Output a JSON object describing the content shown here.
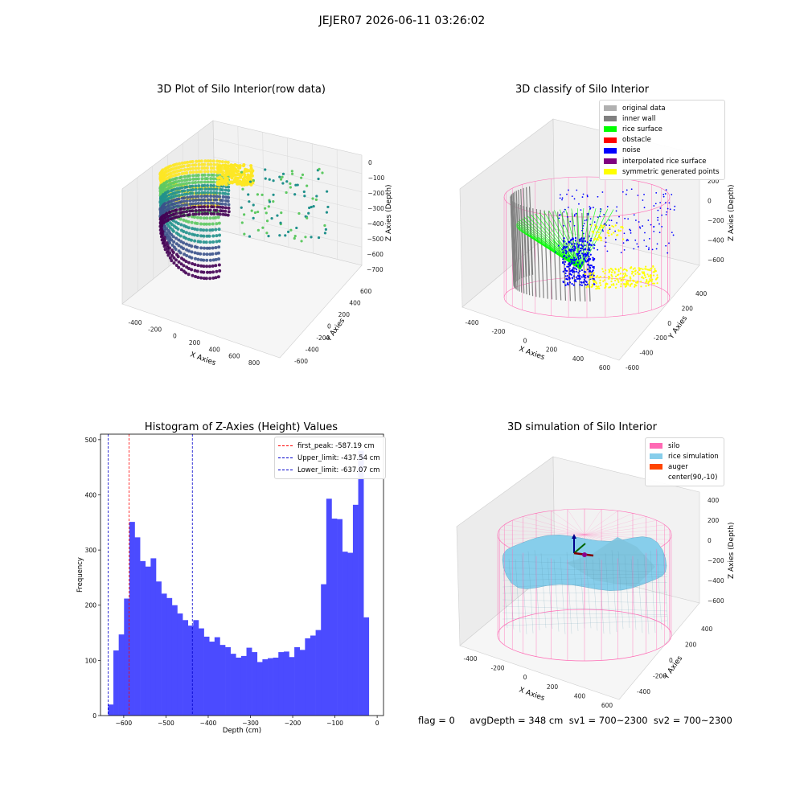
{
  "suptitle": "JEJER07 2026-06-11 03:26:02",
  "colors": {
    "raw_cmap": [
      "#440154",
      "#3b528b",
      "#21918c",
      "#5ec962",
      "#fde725"
    ],
    "original_data": "#b0b0b0",
    "inner_wall": "#808080",
    "rice_surface": "#00ff00",
    "obstacle": "#ff0000",
    "noise": "#0000ff",
    "interpolated": "#800080",
    "symmetric": "#ffff00",
    "silo": "#ff69b4",
    "rice_sim": "#87ceeb",
    "auger": "#ff4500",
    "hist_bar": "#4b4bff",
    "peak_line": "#ff0000",
    "limit_line": "#0000cc"
  },
  "plot1": {
    "title": "3D Plot of Silo Interior(row data)",
    "xlabel": "X Axies",
    "ylabel": "Y Axies",
    "zlabel": "Z Axies (Depth)",
    "xticks": [
      "-400",
      "-200",
      "0",
      "200",
      "400",
      "600",
      "800"
    ],
    "yticks": [
      "-600",
      "-400",
      "-200",
      "0",
      "200",
      "400",
      "600"
    ],
    "zticks": [
      "0",
      "−100",
      "−200",
      "−300",
      "−400",
      "−500",
      "−600",
      "−700"
    ]
  },
  "plot2": {
    "title": "3D classify of Silo Interior",
    "xlabel": "X Axies",
    "ylabel": "Y Axies",
    "zlabel": "Z Axies (Depth)",
    "xticks": [
      "-400",
      "-200",
      "0",
      "200",
      "400",
      "600"
    ],
    "yticks": [
      "-600",
      "-400",
      "-200",
      "0",
      "200",
      "400"
    ],
    "zticks": [
      "200",
      "0",
      "−200",
      "−400",
      "−600"
    ],
    "legend": [
      {
        "label": "original data",
        "color": "#b0b0b0"
      },
      {
        "label": "inner wall",
        "color": "#808080"
      },
      {
        "label": "rice surface",
        "color": "#00ff00"
      },
      {
        "label": "obstacle",
        "color": "#ff0000"
      },
      {
        "label": "noise",
        "color": "#0000ff"
      },
      {
        "label": "interpolated rice surface",
        "color": "#800080"
      },
      {
        "label": "symmetric generated points",
        "color": "#ffff00"
      }
    ]
  },
  "plot4": {
    "title": "3D simulation of Silo Interior",
    "xlabel": "X Axies",
    "ylabel": "Y Axies",
    "zlabel": "Z Axies (Depth)",
    "xticks": [
      "-400",
      "-200",
      "0",
      "200",
      "400",
      "600"
    ],
    "yticks": [
      "-400",
      "-200",
      "0",
      "200",
      "400"
    ],
    "zticks": [
      "400",
      "200",
      "0",
      "−200",
      "−400",
      "−600"
    ],
    "legend": [
      {
        "label": "silo",
        "color": "#ff69b4"
      },
      {
        "label": "rice simulation",
        "color": "#87ceeb"
      },
      {
        "label": "auger",
        "color": "#ff4500"
      },
      {
        "label": "center(90,-10)",
        "color": ""
      }
    ]
  },
  "footer": "flag = 0     avgDepth = 348 cm  sv1 = 700~2300  sv2 = 700~2300",
  "chart_data": {
    "type": "bar",
    "title": "Histogram of Z-Axies (Height) Values",
    "xlabel": "Depth (cm)",
    "ylabel": "Frequency",
    "xlim": [
      -655,
      15
    ],
    "ylim": [
      0,
      510
    ],
    "xticks": [
      -600,
      -500,
      -400,
      -300,
      -200,
      -100,
      0
    ],
    "yticks": [
      0,
      100,
      200,
      300,
      400,
      500
    ],
    "xtick_labels": [
      "−600",
      "−500",
      "−400",
      "−300",
      "−200",
      "−100",
      "0"
    ],
    "bin_start": -637.07,
    "bin_width": 12.6,
    "values": [
      20,
      118,
      147,
      212,
      351,
      323,
      280,
      270,
      285,
      243,
      221,
      213,
      200,
      185,
      173,
      163,
      173,
      158,
      143,
      134,
      142,
      128,
      124,
      112,
      105,
      108,
      123,
      115,
      97,
      102,
      104,
      105,
      115,
      116,
      106,
      124,
      119,
      140,
      145,
      155,
      238,
      393,
      357,
      356,
      297,
      295,
      382,
      480,
      178
    ],
    "lines": [
      {
        "label": "first_peak: -587.19 cm",
        "x": -587.19,
        "color": "#ff0000"
      },
      {
        "label": "Upper_limit: -437.54 cm",
        "x": -437.54,
        "color": "#0000cc"
      },
      {
        "label": "Lower_limit: -637.07 cm",
        "x": -637.07,
        "color": "#0000cc"
      }
    ],
    "legend_position": "upper right"
  }
}
